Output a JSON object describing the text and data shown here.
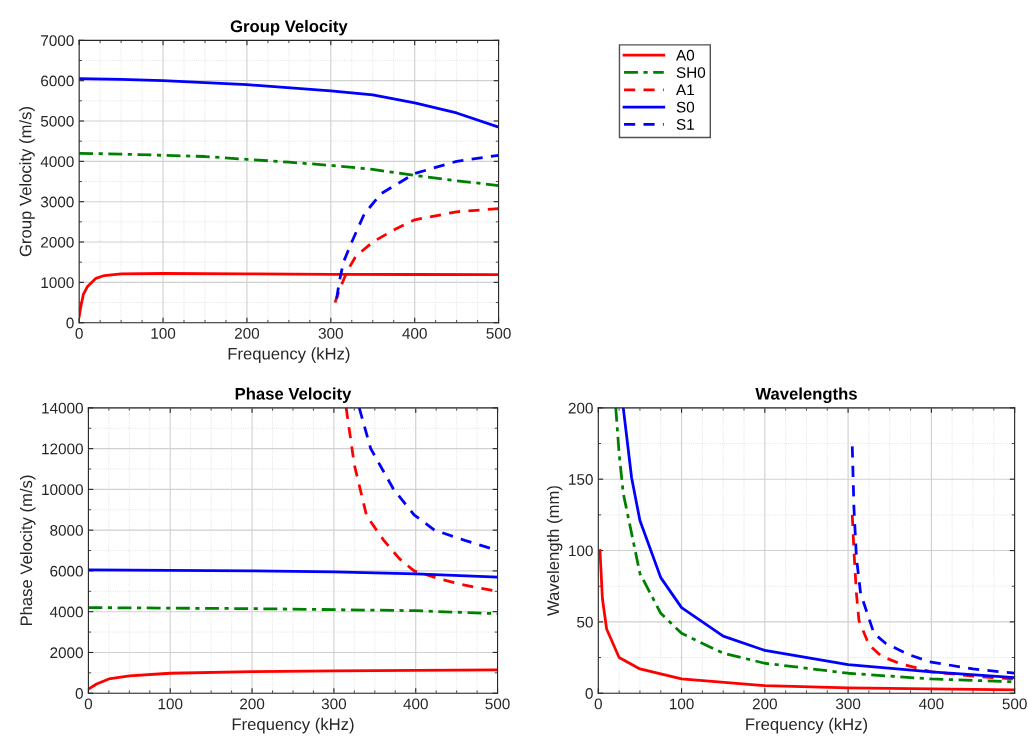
{
  "chart_data": [
    {
      "type": "line",
      "title": "Group Velocity",
      "xlabel": "Frequency (kHz)",
      "ylabel": "Group Velocity (m/s)",
      "xlim": [
        0,
        500
      ],
      "ylim": [
        0,
        7000
      ],
      "xticks": [
        0,
        100,
        200,
        300,
        400,
        500
      ],
      "yticks": [
        0,
        1000,
        2000,
        3000,
        4000,
        5000,
        6000,
        7000
      ],
      "grid": true,
      "legend": "right",
      "series": [
        {
          "name": "A0",
          "color": "#ff0000",
          "line_style": "solid",
          "x": [
            0,
            2,
            5,
            10,
            20,
            30,
            50,
            100,
            200,
            300,
            400,
            500
          ],
          "values": [
            150,
            400,
            700,
            900,
            1100,
            1170,
            1210,
            1220,
            1210,
            1200,
            1195,
            1190
          ]
        },
        {
          "name": "SH0",
          "color": "#008000",
          "line_style": "dashdot",
          "x": [
            0,
            50,
            100,
            150,
            200,
            250,
            300,
            350,
            400,
            450,
            500
          ],
          "values": [
            4200,
            4180,
            4150,
            4120,
            4050,
            3980,
            3900,
            3800,
            3650,
            3520,
            3400
          ]
        },
        {
          "name": "A1",
          "color": "#ff0000",
          "line_style": "dashed",
          "x": [
            305,
            310,
            320,
            330,
            350,
            375,
            400,
            450,
            500
          ],
          "values": [
            500,
            800,
            1300,
            1650,
            2000,
            2300,
            2550,
            2750,
            2830
          ]
        },
        {
          "name": "S0",
          "color": "#0000ff",
          "line_style": "solid",
          "x": [
            0,
            50,
            100,
            200,
            300,
            350,
            400,
            450,
            500
          ],
          "values": [
            6050,
            6030,
            6000,
            5900,
            5750,
            5650,
            5450,
            5200,
            4850
          ]
        },
        {
          "name": "S1",
          "color": "#0000ff",
          "line_style": "dashed",
          "x": [
            307,
            310,
            315,
            325,
            340,
            360,
            400,
            450,
            500
          ],
          "values": [
            600,
            1000,
            1500,
            2000,
            2700,
            3200,
            3700,
            4000,
            4150
          ]
        }
      ]
    },
    {
      "type": "line",
      "title": "Phase Velocity",
      "xlabel": "Frequency (kHz)",
      "ylabel": "Phase Velocity (m/s)",
      "xlim": [
        0,
        500
      ],
      "ylim": [
        0,
        14000
      ],
      "xticks": [
        0,
        100,
        200,
        300,
        400,
        500
      ],
      "yticks": [
        0,
        2000,
        4000,
        6000,
        8000,
        10000,
        12000,
        14000
      ],
      "grid": true,
      "series": [
        {
          "color": "#ff0000",
          "line_style": "solid",
          "x": [
            0,
            10,
            25,
            50,
            100,
            200,
            300,
            500
          ],
          "values": [
            200,
            450,
            700,
            850,
            980,
            1060,
            1100,
            1150
          ]
        },
        {
          "color": "#008000",
          "line_style": "dashdot",
          "x": [
            0,
            200,
            400,
            500
          ],
          "values": [
            4200,
            4150,
            4050,
            3900
          ]
        },
        {
          "color": "#ff0000",
          "line_style": "dashed",
          "x": [
            315,
            325,
            340,
            361,
            380,
            398,
            430,
            460,
            500
          ],
          "values": [
            14000,
            11200,
            8700,
            7500,
            6600,
            6000,
            5600,
            5300,
            5000
          ]
        },
        {
          "color": "#0000ff",
          "line_style": "solid",
          "x": [
            0,
            200,
            300,
            400,
            500
          ],
          "values": [
            6050,
            6000,
            5950,
            5850,
            5700
          ]
        },
        {
          "color": "#0000ff",
          "line_style": "dashed",
          "x": [
            331,
            345,
            373,
            398,
            423,
            460,
            500
          ],
          "values": [
            14000,
            12000,
            10000,
            8750,
            8000,
            7500,
            7000
          ]
        }
      ]
    },
    {
      "type": "line",
      "title": "Wavelengths",
      "xlabel": "Frequency (kHz)",
      "ylabel": "Wavelength (mm)",
      "xlim": [
        0,
        500
      ],
      "ylim": [
        0,
        200
      ],
      "xticks": [
        0,
        100,
        200,
        300,
        400,
        500
      ],
      "yticks": [
        0,
        50,
        100,
        150,
        200
      ],
      "grid": true,
      "series": [
        {
          "color": "#ff0000",
          "line_style": "solid",
          "x": [
            2,
            5,
            10,
            25,
            50,
            100,
            200,
            300,
            500
          ],
          "values": [
            100,
            66,
            45,
            25,
            17,
            10,
            5.3,
            3.7,
            2.3
          ]
        },
        {
          "color": "#008000",
          "line_style": "dashdot",
          "x": [
            21,
            25,
            30,
            50,
            75,
            100,
            150,
            200,
            300,
            400,
            500
          ],
          "values": [
            200,
            168,
            140,
            84,
            56,
            42,
            28,
            21,
            14,
            10,
            8
          ]
        },
        {
          "color": "#ff0000",
          "line_style": "dashed",
          "x": [
            305,
            307,
            310,
            313,
            325,
            340,
            361,
            400,
            450,
            500
          ],
          "values": [
            125,
            100,
            70,
            51,
            34,
            26,
            21,
            15,
            12,
            10
          ]
        },
        {
          "color": "#0000ff",
          "line_style": "solid",
          "x": [
            30,
            40,
            50,
            75,
            100,
            150,
            200,
            300,
            400,
            500
          ],
          "values": [
            200,
            151,
            121,
            81,
            60,
            40,
            30,
            20,
            15,
            11
          ]
        },
        {
          "color": "#0000ff",
          "line_style": "dashed",
          "x": [
            305,
            307,
            310,
            315,
            331,
            345,
            373,
            398,
            450,
            500
          ],
          "values": [
            173,
            130,
            95,
            70,
            42,
            35,
            27,
            22,
            17,
            14
          ]
        }
      ]
    }
  ]
}
